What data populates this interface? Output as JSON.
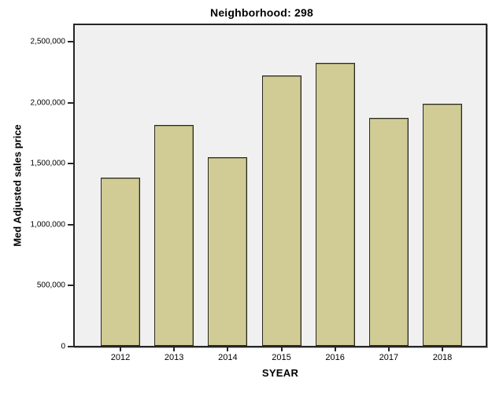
{
  "chart_data": {
    "type": "bar",
    "title": "Neighborhood: 298",
    "xlabel": "SYEAR",
    "ylabel": "Med Adjusted sales price",
    "categories": [
      "2012",
      "2013",
      "2014",
      "2015",
      "2016",
      "2017",
      "2018"
    ],
    "values": [
      1380000,
      1810000,
      1550000,
      2220000,
      2320000,
      1870000,
      1990000
    ],
    "ylim": [
      0,
      2650000
    ],
    "y_ticks": [
      {
        "value": 0,
        "label": "0"
      },
      {
        "value": 500000,
        "label": "500,000"
      },
      {
        "value": 1000000,
        "label": "1,000,000"
      },
      {
        "value": 1500000,
        "label": "1,500,000"
      },
      {
        "value": 2000000,
        "label": "2,000,000"
      },
      {
        "value": 2500000,
        "label": "2,500,000"
      }
    ],
    "grid": false,
    "legend": false
  },
  "colors": {
    "bar_fill": "#D1CC96",
    "bar_border": "#2A2A1E",
    "plot_bg": "#F0F0F0",
    "plot_border": "#262626",
    "text": "#000000"
  }
}
